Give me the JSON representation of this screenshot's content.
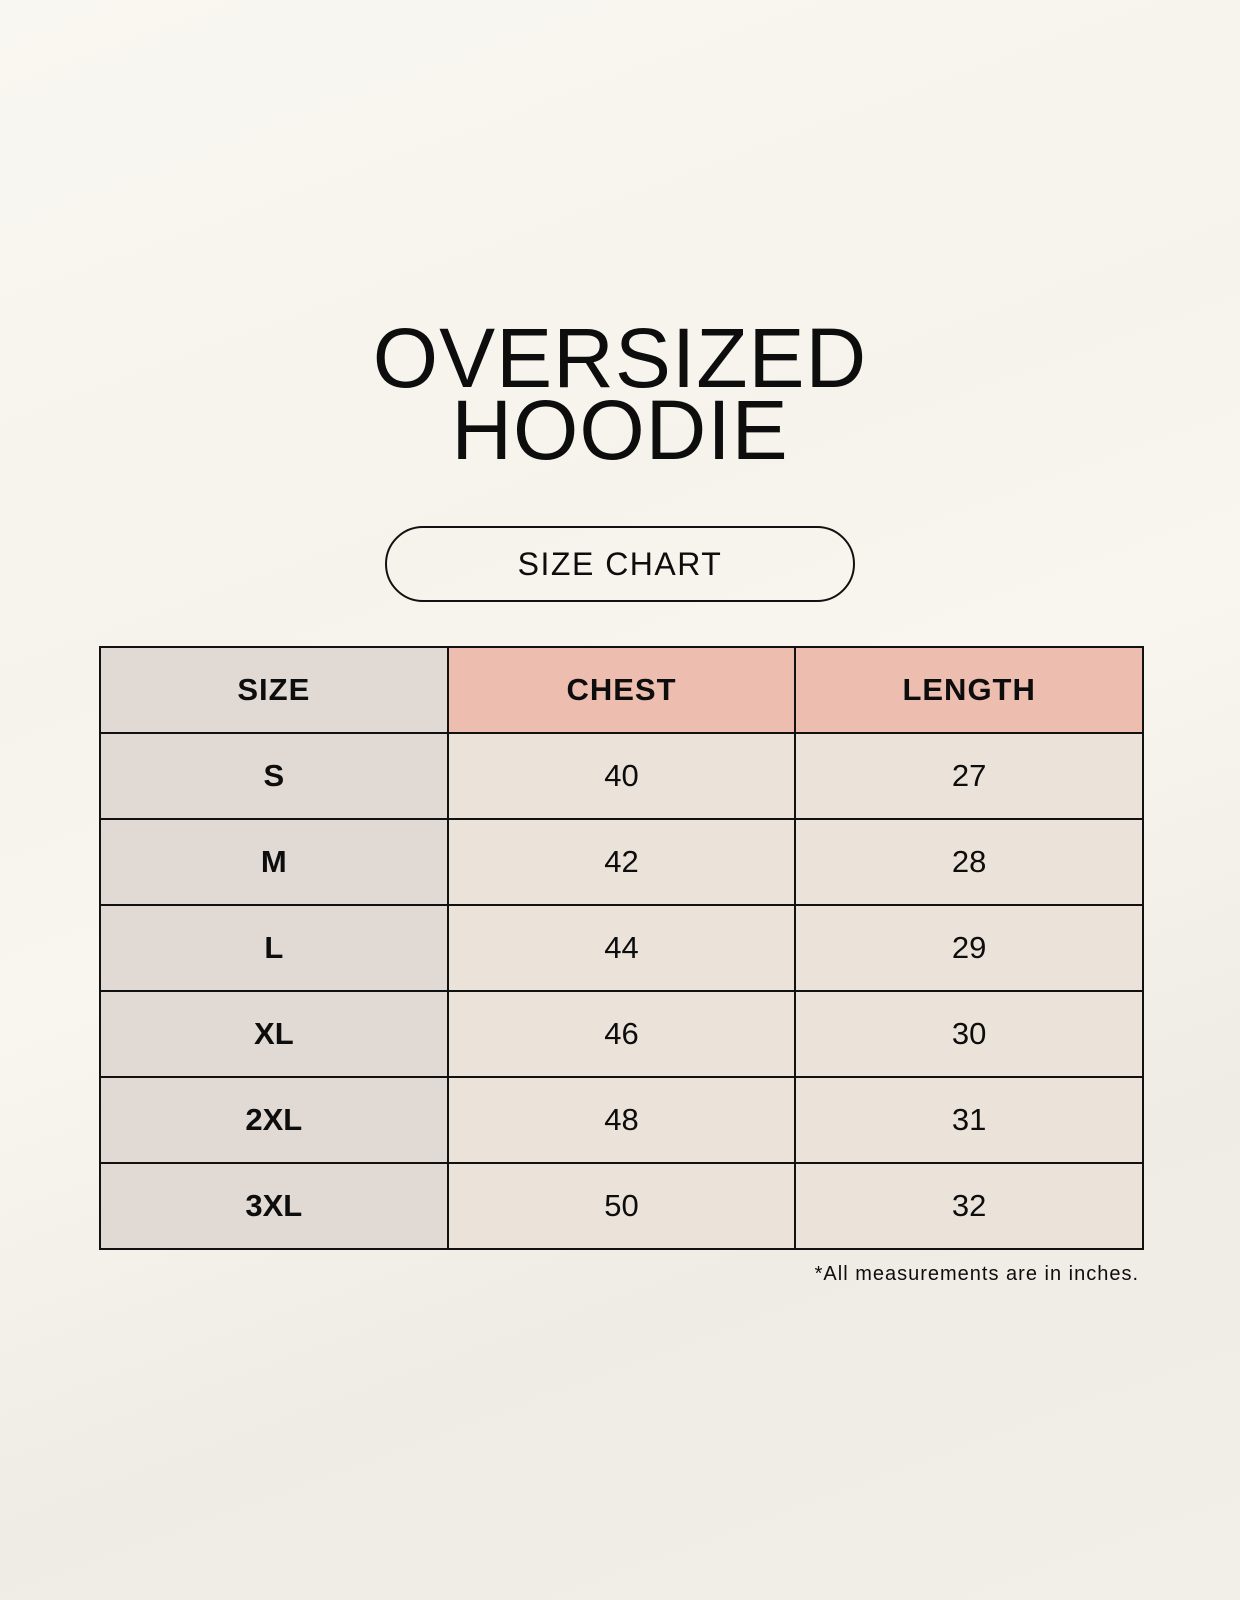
{
  "title": {
    "line1": "OVERSIZED",
    "line2": "HOODIE"
  },
  "subtitle": "SIZE CHART",
  "table": {
    "headers": [
      "SIZE",
      "CHEST",
      "LENGTH"
    ],
    "rows": [
      [
        "S",
        "40",
        "27"
      ],
      [
        "M",
        "42",
        "28"
      ],
      [
        "L",
        "44",
        "29"
      ],
      [
        "XL",
        "46",
        "30"
      ],
      [
        "2XL",
        "48",
        "31"
      ],
      [
        "3XL",
        "50",
        "32"
      ]
    ]
  },
  "footnote": "*All measurements are in inches.",
  "colors": {
    "size_column": "#e0d9d4",
    "header_accent": "#edbdb0",
    "value_cells": "#ebe3da",
    "background": "#f8f5ef"
  }
}
